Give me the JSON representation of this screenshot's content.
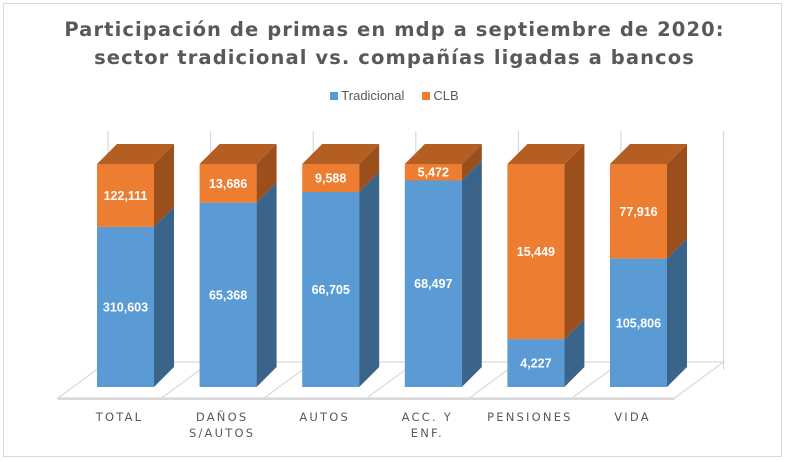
{
  "chart_data": {
    "type": "bar",
    "subtype": "3d-100%-stacked",
    "title": "Participación de primas en mdp a septiembre de 2020: sector tradicional vs. compañías ligadas a bancos",
    "title_lines": [
      "Participación de primas en mdp a septiembre de 2020:",
      "sector tradicional vs. compañías ligadas a bancos"
    ],
    "xlabel": "",
    "ylabel": "",
    "legend_position": "top",
    "grid": true,
    "categories": [
      [
        "TOTAL"
      ],
      [
        "DAÑOS",
        "S/AUTOS"
      ],
      [
        "AUTOS"
      ],
      [
        "ACC. Y",
        "ENF."
      ],
      [
        "PENSIONES"
      ],
      [
        "VIDA"
      ]
    ],
    "category_names": [
      "TOTAL",
      "DAÑOS S/AUTOS",
      "AUTOS",
      "ACC. Y ENF.",
      "PENSIONES",
      "VIDA"
    ],
    "series": [
      {
        "name": "Tradicional",
        "color": "#5B9BD5",
        "side_color": "#3A6489",
        "values": [
          310603,
          65368,
          66705,
          68497,
          4227,
          105806
        ],
        "labels": [
          "310,603",
          "65,368",
          "66,705",
          "68,497",
          "4,227",
          "105,806"
        ]
      },
      {
        "name": "CLB",
        "color": "#ED7D31",
        "side_color": "#9A4F1D",
        "top_color": "#B55E24",
        "values": [
          122111,
          13686,
          9588,
          5472,
          15449,
          77916
        ],
        "labels": [
          "122,111",
          "13,686",
          "9,588",
          "5,472",
          "15,449",
          "77,916"
        ]
      }
    ],
    "ylim": [
      0,
      1
    ]
  },
  "legend": {
    "items": [
      {
        "label": "Tradicional",
        "color": "#5B9BD5"
      },
      {
        "label": "CLB",
        "color": "#ED7D31"
      }
    ]
  },
  "colors": {
    "title": "#595959",
    "axis_text": "#595959",
    "grid": "#d9d9d9"
  }
}
